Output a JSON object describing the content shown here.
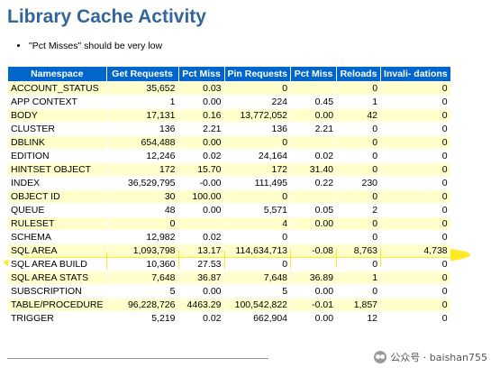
{
  "page": {
    "title": "Library Cache Activity",
    "notes": [
      "\"Pct Misses\" should be very low"
    ]
  },
  "table": {
    "headers": [
      "Namespace",
      "Get Requests",
      "Pct Miss",
      "Pin Requests",
      "Pct Miss",
      "Reloads",
      "Invali- dations"
    ],
    "rows": [
      {
        "namespace": "ACCOUNT_STATUS",
        "get_requests": "35,652",
        "pct_miss": "0.03",
        "pin_requests": "0",
        "pin_pct_miss": "",
        "reloads": "0",
        "invalidations": "0"
      },
      {
        "namespace": "APP CONTEXT",
        "get_requests": "1",
        "pct_miss": "0.00",
        "pin_requests": "224",
        "pin_pct_miss": "0.45",
        "reloads": "1",
        "invalidations": "0"
      },
      {
        "namespace": "BODY",
        "get_requests": "17,131",
        "pct_miss": "0.16",
        "pin_requests": "13,772,052",
        "pin_pct_miss": "0.00",
        "reloads": "42",
        "invalidations": "0"
      },
      {
        "namespace": "CLUSTER",
        "get_requests": "136",
        "pct_miss": "2.21",
        "pin_requests": "136",
        "pin_pct_miss": "2.21",
        "reloads": "0",
        "invalidations": "0"
      },
      {
        "namespace": "DBLINK",
        "get_requests": "654,488",
        "pct_miss": "0.00",
        "pin_requests": "0",
        "pin_pct_miss": "",
        "reloads": "0",
        "invalidations": "0"
      },
      {
        "namespace": "EDITION",
        "get_requests": "12,246",
        "pct_miss": "0.02",
        "pin_requests": "24,164",
        "pin_pct_miss": "0.02",
        "reloads": "0",
        "invalidations": "0"
      },
      {
        "namespace": "HINTSET OBJECT",
        "get_requests": "172",
        "pct_miss": "15.70",
        "pin_requests": "172",
        "pin_pct_miss": "31.40",
        "reloads": "0",
        "invalidations": "0"
      },
      {
        "namespace": "INDEX",
        "get_requests": "36,529,795",
        "pct_miss": "-0.00",
        "pin_requests": "111,495",
        "pin_pct_miss": "0.22",
        "reloads": "230",
        "invalidations": "0"
      },
      {
        "namespace": "OBJECT ID",
        "get_requests": "30",
        "pct_miss": "100.00",
        "pin_requests": "0",
        "pin_pct_miss": "",
        "reloads": "0",
        "invalidations": "0"
      },
      {
        "namespace": "QUEUE",
        "get_requests": "48",
        "pct_miss": "0.00",
        "pin_requests": "5,571",
        "pin_pct_miss": "0.05",
        "reloads": "2",
        "invalidations": "0"
      },
      {
        "namespace": "RULESET",
        "get_requests": "0",
        "pct_miss": "",
        "pin_requests": "4",
        "pin_pct_miss": "0.00",
        "reloads": "0",
        "invalidations": "0"
      },
      {
        "namespace": "SCHEMA",
        "get_requests": "12,982",
        "pct_miss": "0.02",
        "pin_requests": "0",
        "pin_pct_miss": "",
        "reloads": "0",
        "invalidations": "0"
      },
      {
        "namespace": "SQL AREA",
        "get_requests": "1,093,798",
        "pct_miss": "13.17",
        "pin_requests": "114,634,713",
        "pin_pct_miss": "-0.08",
        "reloads": "8,763",
        "invalidations": "4,738"
      },
      {
        "namespace": "SQL AREA BUILD",
        "get_requests": "10,360",
        "pct_miss": "27.53",
        "pin_requests": "0",
        "pin_pct_miss": "",
        "reloads": "0",
        "invalidations": "0"
      },
      {
        "namespace": "SQL AREA STATS",
        "get_requests": "7,648",
        "pct_miss": "36.87",
        "pin_requests": "7,648",
        "pin_pct_miss": "36.89",
        "reloads": "1",
        "invalidations": "0"
      },
      {
        "namespace": "SUBSCRIPTION",
        "get_requests": "5",
        "pct_miss": "0.00",
        "pin_requests": "5",
        "pin_pct_miss": "0.00",
        "reloads": "0",
        "invalidations": "0"
      },
      {
        "namespace": "TABLE/PROCEDURE",
        "get_requests": "96,228,726",
        "pct_miss": "4463.29",
        "pin_requests": "100,542,822",
        "pin_pct_miss": "-0.01",
        "reloads": "1,857",
        "invalidations": "0"
      },
      {
        "namespace": "TRIGGER",
        "get_requests": "5,219",
        "pct_miss": "0.02",
        "pin_requests": "662,904",
        "pin_pct_miss": "0.00",
        "reloads": "12",
        "invalidations": "0"
      }
    ]
  },
  "watermark": {
    "text": "公众号 · baishan755",
    "icon": "wechat-icon"
  },
  "colors": {
    "title": "#336699",
    "header_bg": "#0066cc",
    "odd_row_bg": "#ffffcc",
    "highlight": "#ffe600"
  }
}
